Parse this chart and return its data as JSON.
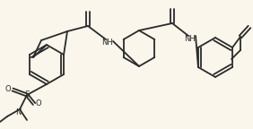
{
  "bg_color": "#faf6ec",
  "line_color": "#2a2a2a",
  "lw": 1.3,
  "figsize": [
    2.82,
    1.44
  ],
  "dpi": 100,
  "xlim": [
    0,
    282
  ],
  "ylim": [
    0,
    144
  ]
}
